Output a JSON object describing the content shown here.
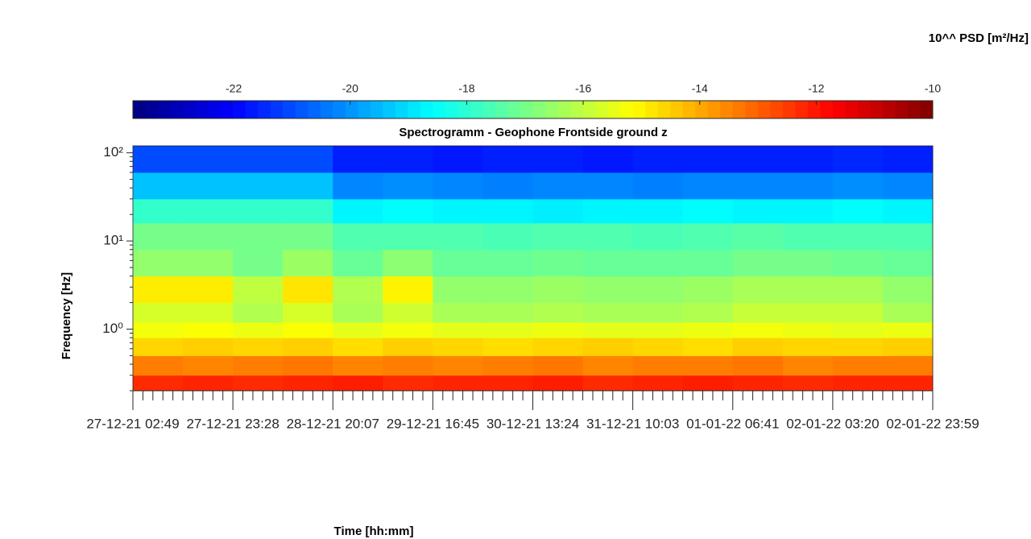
{
  "chart_data": {
    "type": "heatmap",
    "title": "Spectrogramm - Geophone Frontside ground z",
    "xlabel": "Time [hh:mm]",
    "ylabel": "Frequency [Hz]",
    "colorbar_label": "10^^ PSD [m²/Hz]",
    "colormap": "jet",
    "log_y": true,
    "categories": [
      "27-12-21 02:49",
      "27-12-21 23:28",
      "28-12-21 20:07",
      "29-12-21 16:45",
      "30-12-21 13:24",
      "31-12-21 10:03",
      "01-01-22 06:41",
      "02-01-22 03:20",
      "02-01-22 23:59"
    ],
    "ylim": [
      0.2,
      120
    ],
    "yticks": [
      {
        "value": 1,
        "label": "10⁰"
      },
      {
        "value": 10,
        "label": "10¹"
      },
      {
        "value": 100,
        "label": "10²"
      }
    ],
    "clim": [
      -23.73,
      -10
    ],
    "cticks": [
      -22,
      -20,
      -18,
      -16,
      -14,
      -12,
      -10
    ],
    "freq_bins": [
      0.2,
      0.3,
      0.5,
      0.8,
      1.2,
      2,
      4,
      8,
      16,
      30,
      60,
      120
    ],
    "z": [
      [
        -12.3,
        -12.2,
        -12.3,
        -12.2,
        -12.1,
        -12.3,
        -12.2,
        -12.2,
        -12.1,
        -12.3,
        -12.2,
        -12.1,
        -12.2,
        -12.3,
        -12.2,
        -12.2
      ],
      [
        -13.4,
        -13.5,
        -13.4,
        -13.3,
        -13.5,
        -13.4,
        -13.5,
        -13.4,
        -13.3,
        -13.5,
        -13.4,
        -13.4,
        -13.3,
        -13.5,
        -13.4,
        -13.4
      ],
      [
        -14.6,
        -14.5,
        -14.6,
        -14.5,
        -14.7,
        -14.5,
        -14.6,
        -14.7,
        -14.6,
        -14.5,
        -14.6,
        -14.7,
        -14.5,
        -14.6,
        -14.6,
        -14.5
      ],
      [
        -15.3,
        -15.2,
        -15.4,
        -15.2,
        -15.5,
        -15.3,
        -15.5,
        -15.5,
        -15.4,
        -15.5,
        -15.5,
        -15.4,
        -15.3,
        -15.4,
        -15.5,
        -15.4
      ],
      [
        -15.7,
        -15.7,
        -16.2,
        -15.7,
        -16.3,
        -15.8,
        -16.3,
        -16.3,
        -16.2,
        -16.3,
        -16.3,
        -16.2,
        -15.9,
        -15.9,
        -15.9,
        -16.3
      ],
      [
        -14.9,
        -14.9,
        -16.0,
        -14.8,
        -16.2,
        -15.0,
        -16.6,
        -16.6,
        -16.5,
        -16.6,
        -16.6,
        -16.5,
        -16.3,
        -16.3,
        -16.3,
        -16.6
      ],
      [
        -16.6,
        -16.6,
        -17.0,
        -16.5,
        -17.2,
        -16.7,
        -17.2,
        -17.2,
        -17.1,
        -17.2,
        -17.2,
        -17.2,
        -17.0,
        -17.0,
        -17.1,
        -17.2
      ],
      [
        -17.0,
        -17.0,
        -17.0,
        -17.0,
        -17.5,
        -17.5,
        -17.5,
        -17.6,
        -17.5,
        -17.5,
        -17.6,
        -17.5,
        -17.4,
        -17.5,
        -17.5,
        -17.5
      ],
      [
        -17.9,
        -17.9,
        -17.9,
        -17.9,
        -18.7,
        -18.6,
        -18.7,
        -18.7,
        -18.8,
        -18.7,
        -18.7,
        -18.6,
        -18.7,
        -18.7,
        -18.6,
        -18.7
      ],
      [
        -19.4,
        -19.4,
        -19.4,
        -19.4,
        -20.2,
        -20.1,
        -20.2,
        -20.3,
        -20.2,
        -20.2,
        -20.3,
        -20.2,
        -20.2,
        -20.2,
        -20.1,
        -20.2
      ],
      [
        -21.0,
        -21.0,
        -21.0,
        -21.0,
        -21.6,
        -21.6,
        -21.7,
        -21.6,
        -21.6,
        -21.7,
        -21.6,
        -21.6,
        -21.6,
        -21.6,
        -21.5,
        -21.6
      ]
    ]
  }
}
